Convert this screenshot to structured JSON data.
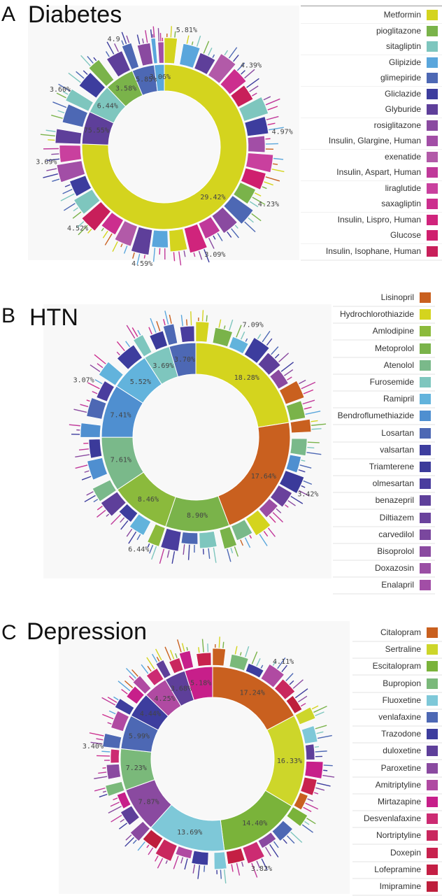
{
  "panels": [
    {
      "letter": "A",
      "title": "Diabetes",
      "legend": [
        {
          "label": "Metformin",
          "color": "#d4d41e"
        },
        {
          "label": "pioglitazone",
          "color": "#7ab34a"
        },
        {
          "label": "sitagliptin",
          "color": "#7ec6be"
        },
        {
          "label": "Glipizide",
          "color": "#5aa6dc"
        },
        {
          "label": "glimepiride",
          "color": "#4d68b4"
        },
        {
          "label": "Gliclazide",
          "color": "#3d3d9e"
        },
        {
          "label": "Glyburide",
          "color": "#5e3f9a"
        },
        {
          "label": "rosiglitazone",
          "color": "#8a4aa0"
        },
        {
          "label": "Insulin, Glargine, Human",
          "color": "#a24ea6"
        },
        {
          "label": "exenatide",
          "color": "#b25aa8"
        },
        {
          "label": "Insulin, Aspart, Human",
          "color": "#c0399a"
        },
        {
          "label": "liraglutide",
          "color": "#c9409e"
        },
        {
          "label": "saxagliptin",
          "color": "#cc2e8e"
        },
        {
          "label": "Insulin, Lispro, Human",
          "color": "#d0247c"
        },
        {
          "label": "Glucose",
          "color": "#cf1f6e"
        },
        {
          "label": "Insulin, Isophane, Human",
          "color": "#c81f5a"
        }
      ],
      "pct_labels": [
        "29.42%",
        "75.55%",
        "6.44%",
        "3.58%",
        "5.85%",
        "3.06%",
        "5.81%",
        "4.39%",
        "4.97%",
        "4.23%",
        "3.09%",
        "4.59%",
        "4.52%",
        "3.69%",
        "3.60%",
        "4.9"
      ],
      "chart_data": {
        "type": "sunburst",
        "inner_ring": [
          {
            "name": "Metformin",
            "value": 75.55
          },
          {
            "name": "Glyburide",
            "value": 6.44
          },
          {
            "name": "sitagliptin",
            "value": 5.85
          },
          {
            "name": "pioglitazone",
            "value": 5.81
          },
          {
            "name": "glimepiride",
            "value": 4.39
          },
          {
            "name": "Glipizide",
            "value": 1.96
          }
        ],
        "outer_ring": [
          {
            "name": "Metformin",
            "value": 29.42
          },
          {
            "name": "Gliclazide",
            "value": 3.6
          },
          {
            "name": "sitagliptin",
            "value": 3.58
          },
          {
            "name": "Glipizide",
            "value": 3.06
          },
          {
            "name": "pioglitazone",
            "value": 5.81
          },
          {
            "name": "glimepiride",
            "value": 4.39
          },
          {
            "name": "glimepiride",
            "value": 4.97
          },
          {
            "name": "rosiglitazone",
            "value": 4.23
          },
          {
            "name": "Metformin",
            "value": 3.09
          },
          {
            "name": "Gliclazide",
            "value": 4.59
          },
          {
            "name": "Glipizide",
            "value": 4.52
          },
          {
            "name": "pioglitazone",
            "value": 3.69
          }
        ]
      }
    },
    {
      "letter": "B",
      "title": "HTN",
      "legend": [
        {
          "label": "Lisinopril",
          "color": "#c9601f"
        },
        {
          "label": "Hydrochlorothiazide",
          "color": "#d4d41e"
        },
        {
          "label": "Amlodipine",
          "color": "#8bba3c"
        },
        {
          "label": "Metoprolol",
          "color": "#7ab34a"
        },
        {
          "label": "Atenolol",
          "color": "#7ab98a"
        },
        {
          "label": "Furosemide",
          "color": "#7ec6be"
        },
        {
          "label": "Ramipril",
          "color": "#62b3dc"
        },
        {
          "label": "Bendroflumethiazide",
          "color": "#4f8fd0"
        },
        {
          "label": "Losartan",
          "color": "#4d68b4"
        },
        {
          "label": "valsartan",
          "color": "#3d3d9e"
        },
        {
          "label": "Triamterene",
          "color": "#3b3a9a"
        },
        {
          "label": "olmesartan",
          "color": "#4a3d9e"
        },
        {
          "label": "benazepril",
          "color": "#5e3f9a"
        },
        {
          "label": "Diltiazem",
          "color": "#6a429c"
        },
        {
          "label": "carvedilol",
          "color": "#7a479e"
        },
        {
          "label": "Bisoprolol",
          "color": "#8a4aa0"
        },
        {
          "label": "Doxazosin",
          "color": "#9a4ea4"
        },
        {
          "label": "Enalapril",
          "color": "#a24ea6"
        }
      ],
      "pct_labels": [
        "18.28%",
        "17.64%",
        "8.90%",
        "8.46%",
        "7.61%",
        "7.41%",
        "5.52%",
        "3.69%",
        "3.70%",
        "7.09%",
        "3.42%",
        "6.44%",
        "3.07%"
      ],
      "chart_data": {
        "type": "sunburst",
        "inner_ring": [
          {
            "name": "Hydrochlorothiazide",
            "value": 18.28
          },
          {
            "name": "Lisinopril",
            "value": 17.64
          },
          {
            "name": "Metoprolol",
            "value": 8.9
          },
          {
            "name": "Amlodipine",
            "value": 8.46
          },
          {
            "name": "Atenolol",
            "value": 7.61
          },
          {
            "name": "Bendroflumethiazide",
            "value": 7.41
          },
          {
            "name": "Ramipril",
            "value": 5.52
          },
          {
            "name": "Furosemide",
            "value": 3.69
          },
          {
            "name": "Losartan",
            "value": 3.7
          }
        ],
        "outer_ring": [
          {
            "name": "Lisinopril",
            "value": 7.09
          },
          {
            "name": "Hydrochlorothiazide",
            "value": 3.42
          },
          {
            "name": "Lisinopril",
            "value": 6.44
          },
          {
            "name": "Hydrochlorothiazide",
            "value": 3.07
          },
          {
            "name": "Hydrochlorothiazide",
            "value": 3.69
          }
        ]
      }
    },
    {
      "letter": "C",
      "title": "Depression",
      "legend": [
        {
          "label": "Citalopram",
          "color": "#c9601f"
        },
        {
          "label": "Sertraline",
          "color": "#cdd62a"
        },
        {
          "label": "Escitalopram",
          "color": "#7ab33a"
        },
        {
          "label": "Bupropion",
          "color": "#7ab97a"
        },
        {
          "label": "Fluoxetine",
          "color": "#7ec8d8"
        },
        {
          "label": "venlafaxine",
          "color": "#4d68b4"
        },
        {
          "label": "Trazodone",
          "color": "#3d3d9e"
        },
        {
          "label": "duloxetine",
          "color": "#5e3f9a"
        },
        {
          "label": "Paroxetine",
          "color": "#8a4aa0"
        },
        {
          "label": "Amitriptyline",
          "color": "#b04aa2"
        },
        {
          "label": "Mirtazapine",
          "color": "#c71f8a"
        },
        {
          "label": "Desvenlafaxine",
          "color": "#cc2b72"
        },
        {
          "label": "Nortriptyline",
          "color": "#c9275e"
        },
        {
          "label": "Doxepin",
          "color": "#c8224e"
        },
        {
          "label": "Lofepramine",
          "color": "#c41f44"
        },
        {
          "label": "Imipramine",
          "color": "#be1f3c"
        }
      ],
      "pct_labels": [
        "17.24%",
        "16.33%",
        "14.40%",
        "13.69%",
        "7.87%",
        "7.23%",
        "5.99%",
        "4.44%",
        "4.25%",
        "3.68%",
        "5.18%",
        "4.11%",
        "3.82%",
        "3.40%"
      ],
      "chart_data": {
        "type": "sunburst",
        "inner_ring": [
          {
            "name": "Citalopram",
            "value": 17.24
          },
          {
            "name": "Sertraline",
            "value": 16.33
          },
          {
            "name": "Escitalopram",
            "value": 14.4
          },
          {
            "name": "Fluoxetine",
            "value": 13.69
          },
          {
            "name": "Paroxetine",
            "value": 7.87
          },
          {
            "name": "Bupropion",
            "value": 7.23
          },
          {
            "name": "venlafaxine",
            "value": 5.99
          },
          {
            "name": "Trazodone",
            "value": 4.44
          },
          {
            "name": "Amitriptyline",
            "value": 4.25
          },
          {
            "name": "duloxetine",
            "value": 3.68
          },
          {
            "name": "Mirtazapine",
            "value": 4.88
          }
        ],
        "outer_ring": [
          {
            "name": "Citalopram",
            "value": 5.18
          },
          {
            "name": "Sertraline",
            "value": 4.11
          },
          {
            "name": "Sertraline",
            "value": 3.82
          },
          {
            "name": "Fluoxetine",
            "value": 3.4
          }
        ]
      }
    }
  ]
}
